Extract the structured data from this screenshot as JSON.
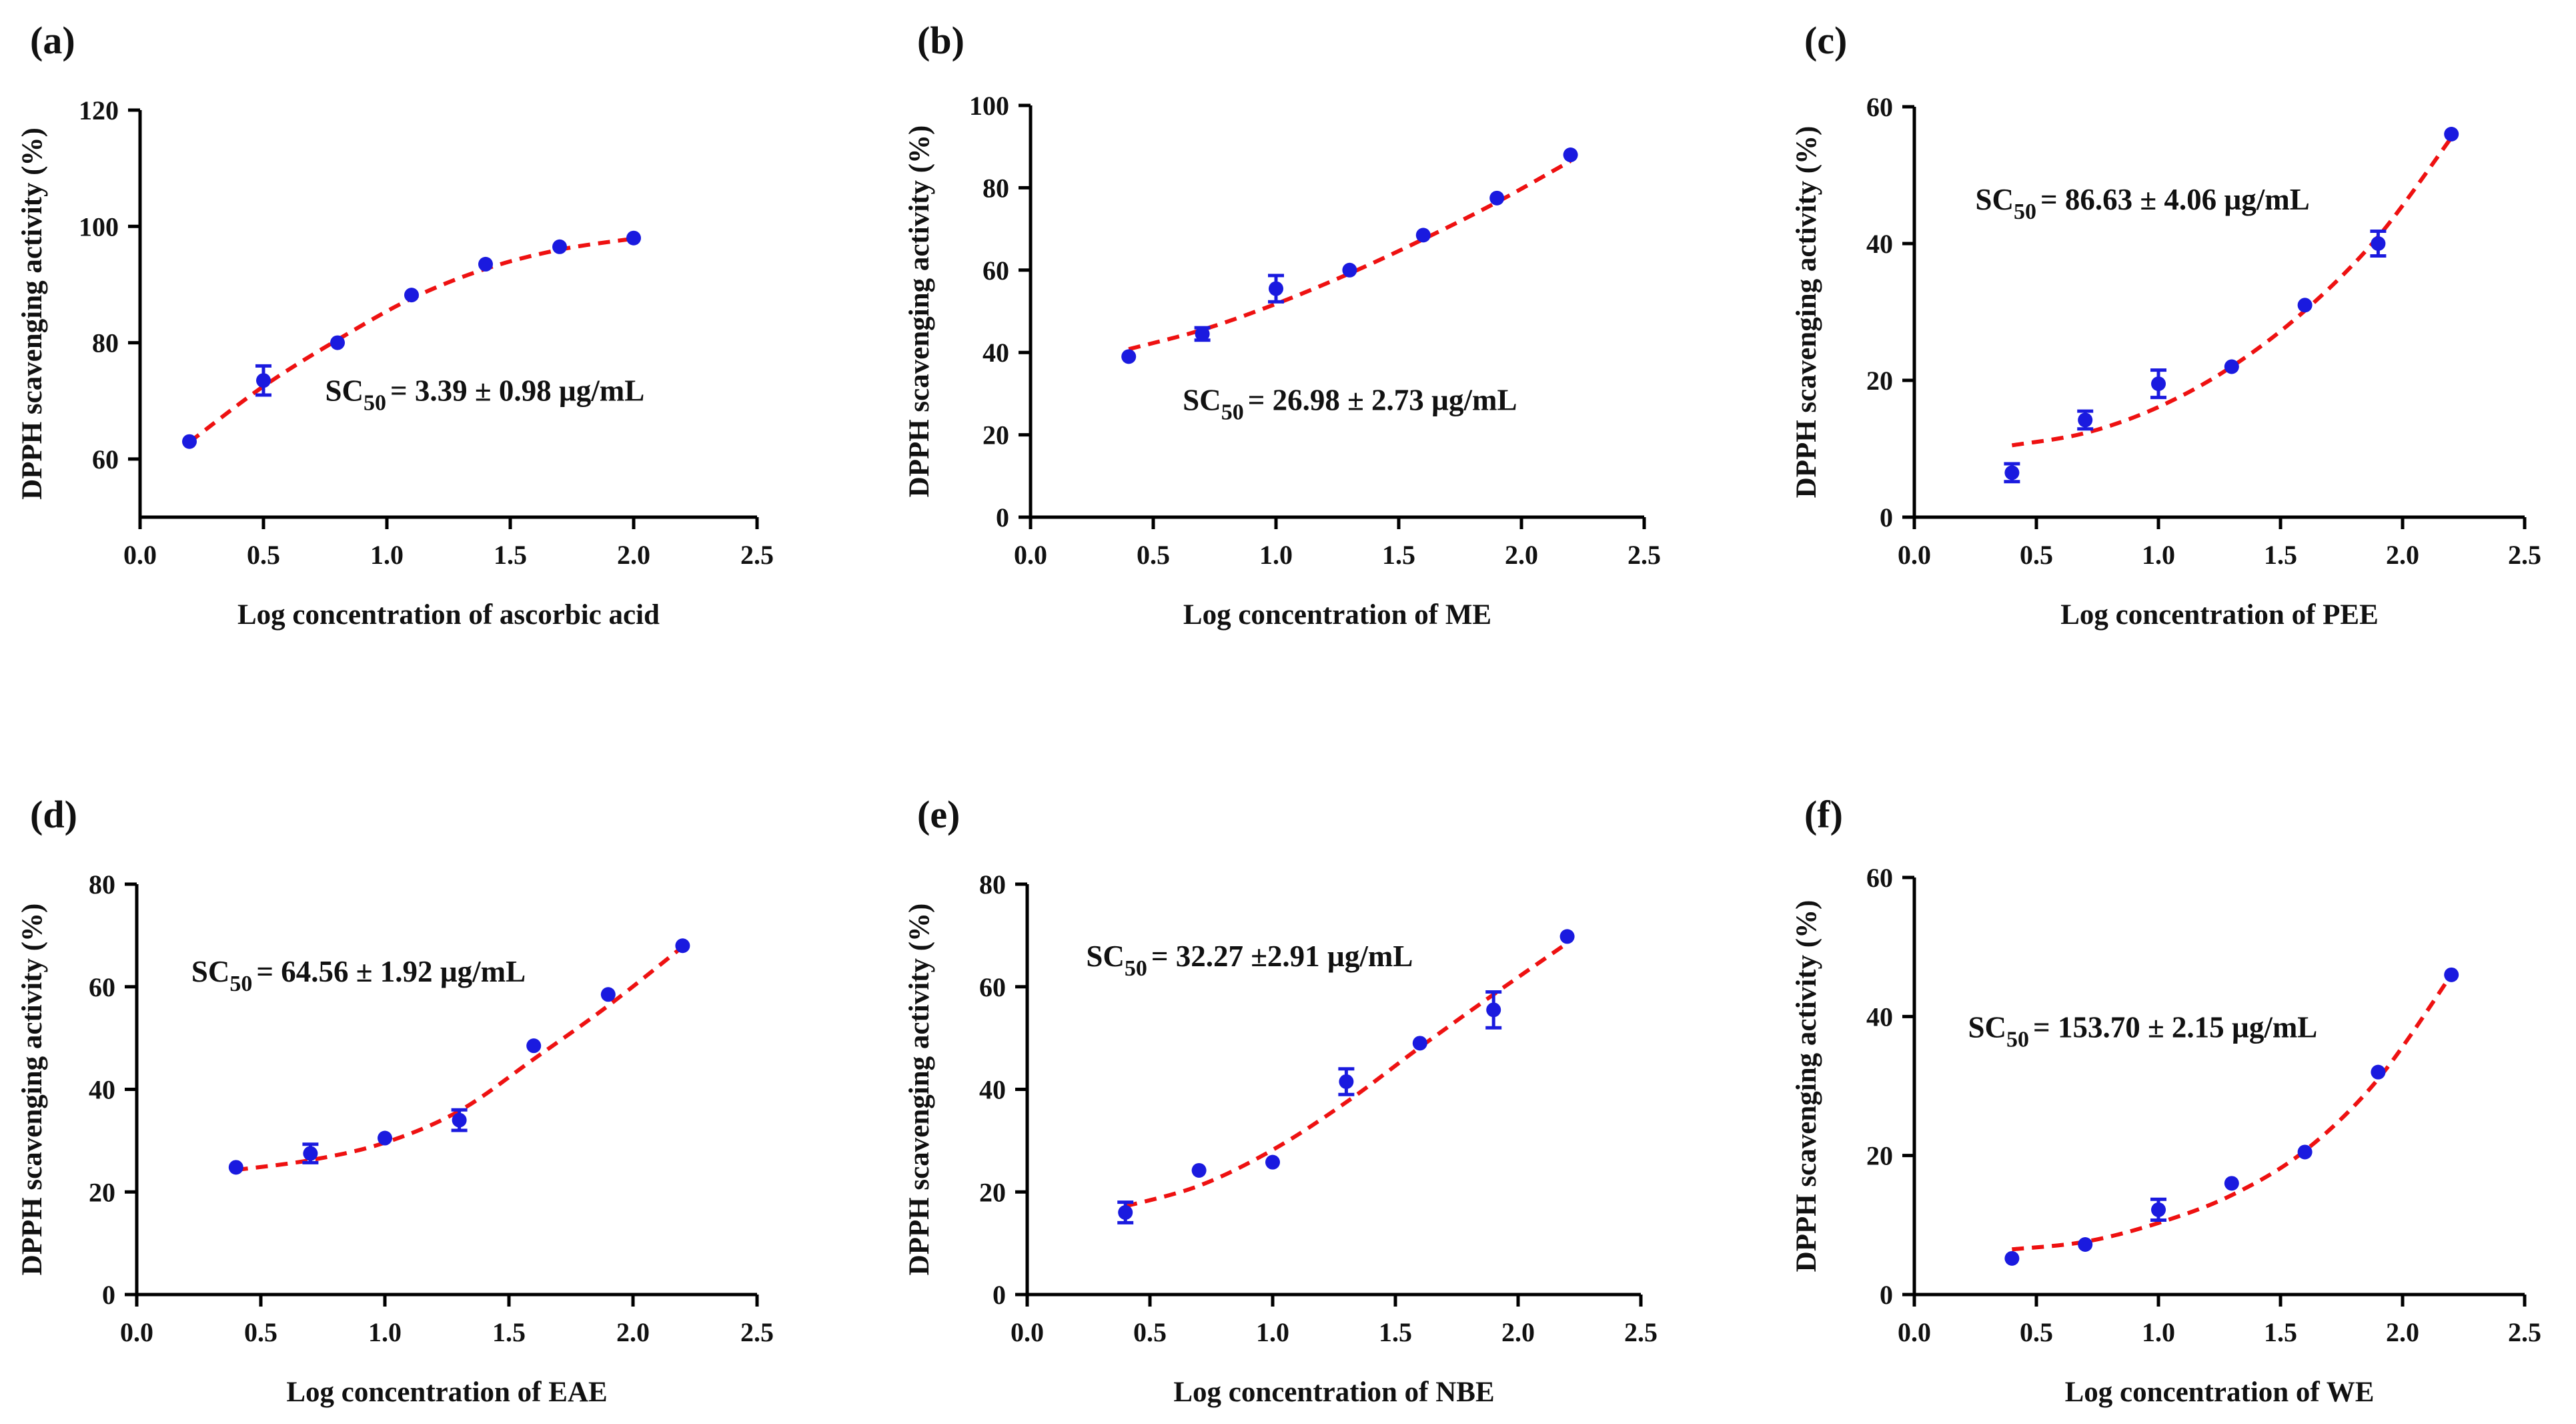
{
  "colors": {
    "points": "#1a1adf",
    "fit_line": "#ee1111",
    "axis": "#000000",
    "text": "#111111"
  },
  "chart_data": [
    {
      "type": "scatter",
      "panel": "(a)",
      "title": "",
      "xlabel": "Log concentration of ascorbic acid",
      "ylabel": "DPPH scavenging activity (%)",
      "xlim": [
        0,
        2.5
      ],
      "ylim": [
        50,
        120
      ],
      "xticks": [
        0,
        0.5,
        1,
        1.5,
        2,
        2.5
      ],
      "xtick_labels": [
        "0.0",
        "0.5",
        "1.0",
        "1.5",
        "2.0",
        "2.5"
      ],
      "yticks": [
        60,
        80,
        100,
        120
      ],
      "ytick_labels": [
        "60",
        "80",
        "100",
        "120"
      ],
      "x": [
        0.2,
        0.5,
        0.8,
        1.1,
        1.4,
        1.7,
        2.0
      ],
      "y": [
        63,
        73.5,
        80,
        88.2,
        93.5,
        96.5,
        98
      ],
      "error": [
        0,
        2.5,
        0,
        0,
        0,
        0,
        0
      ],
      "fit": [
        [
          0.2,
          62.9
        ],
        [
          0.5,
          72.5
        ],
        [
          0.8,
          80.5
        ],
        [
          1.1,
          87.6
        ],
        [
          1.4,
          92.7
        ],
        [
          1.7,
          96.0
        ],
        [
          2.0,
          97.9
        ]
      ],
      "annotation": {
        "prefix": "SC",
        "sub": "50",
        "text": "= 3.39 ± 0.98 µg/mL",
        "x": 0.75,
        "y": 70
      }
    },
    {
      "type": "scatter",
      "panel": "(b)",
      "title": "",
      "xlabel": "Log concentration of ME",
      "ylabel": "DPPH scavenging activity (%)",
      "xlim": [
        0,
        2.5
      ],
      "ylim": [
        0,
        100
      ],
      "xticks": [
        0,
        0.5,
        1,
        1.5,
        2,
        2.5
      ],
      "xtick_labels": [
        "0.0",
        "0.5",
        "1.0",
        "1.5",
        "2.0",
        "2.5"
      ],
      "yticks": [
        0,
        20,
        40,
        60,
        80,
        100
      ],
      "ytick_labels": [
        "0",
        "20",
        "40",
        "60",
        "80",
        "100"
      ],
      "x": [
        0.4,
        0.7,
        1.0,
        1.3,
        1.6,
        1.9,
        2.2
      ],
      "y": [
        39,
        44.5,
        55.5,
        60,
        68.5,
        77.5,
        88
      ],
      "error": [
        0,
        1.5,
        3.2,
        0,
        0,
        0,
        0
      ],
      "fit": [
        [
          0.4,
          40.8
        ],
        [
          0.7,
          45.5
        ],
        [
          1.0,
          51.8
        ],
        [
          1.3,
          59.2
        ],
        [
          1.6,
          67.5
        ],
        [
          1.9,
          76.5
        ],
        [
          2.2,
          86.5
        ]
      ],
      "annotation": {
        "prefix": "SC",
        "sub": "50",
        "text": "= 26.98 ± 2.73 µg/mL",
        "x": 0.62,
        "y": 26
      }
    },
    {
      "type": "scatter",
      "panel": "(c)",
      "title": "",
      "xlabel": "Log concentration of PEE",
      "ylabel": "DPPH scavenging activity (%)",
      "xlim": [
        0,
        2.5
      ],
      "ylim": [
        0,
        60
      ],
      "xticks": [
        0,
        0.5,
        1,
        1.5,
        2,
        2.5
      ],
      "xtick_labels": [
        "0.0",
        "0.5",
        "1.0",
        "1.5",
        "2.0",
        "2.5"
      ],
      "yticks": [
        0,
        20,
        40,
        60
      ],
      "ytick_labels": [
        "0",
        "20",
        "40",
        "60"
      ],
      "x": [
        0.4,
        0.7,
        1.0,
        1.3,
        1.6,
        1.9,
        2.2
      ],
      "y": [
        6.5,
        14.2,
        19.5,
        22,
        31,
        40,
        56
      ],
      "error": [
        1.3,
        1.3,
        2.0,
        0,
        0,
        1.8,
        0
      ],
      "fit": [
        [
          0.4,
          10.5
        ],
        [
          0.7,
          12.3
        ],
        [
          1.0,
          16.1
        ],
        [
          1.3,
          22.0
        ],
        [
          1.6,
          30.2
        ],
        [
          1.9,
          41.0
        ],
        [
          2.2,
          55.5
        ]
      ],
      "annotation": {
        "prefix": "SC",
        "sub": "50",
        "text": "= 86.63 ± 4.06 µg/mL",
        "x": 0.25,
        "y": 45
      }
    },
    {
      "type": "scatter",
      "panel": "(d)",
      "title": "",
      "xlabel": "Log concentration of EAE",
      "ylabel": "DPPH scavenging activity (%)",
      "xlim": [
        0,
        2.5
      ],
      "ylim": [
        0,
        80
      ],
      "xticks": [
        0,
        0.5,
        1,
        1.5,
        2,
        2.5
      ],
      "xtick_labels": [
        "0.0",
        "0.5",
        "1.0",
        "1.5",
        "2.0",
        "2.5"
      ],
      "yticks": [
        0,
        20,
        40,
        60,
        80
      ],
      "ytick_labels": [
        "0",
        "20",
        "40",
        "60",
        "80"
      ],
      "x": [
        0.4,
        0.7,
        1.0,
        1.3,
        1.6,
        1.9,
        2.2
      ],
      "y": [
        24.8,
        27.5,
        30.5,
        34,
        48.5,
        58.5,
        68
      ],
      "error": [
        0,
        1.8,
        0,
        2.0,
        0,
        0,
        0
      ],
      "fit": [
        [
          0.4,
          24.3
        ],
        [
          0.7,
          26.2
        ],
        [
          1.0,
          29.6
        ],
        [
          1.3,
          35.8
        ],
        [
          1.6,
          45.9
        ],
        [
          1.9,
          56.3
        ],
        [
          2.2,
          67.8
        ]
      ],
      "annotation": {
        "prefix": "SC",
        "sub": "50",
        "text": "= 64.56 ± 1.92 µg/mL",
        "x": 0.22,
        "y": 61
      }
    },
    {
      "type": "scatter",
      "panel": "(e)",
      "title": "",
      "xlabel": "Log concentration of NBE",
      "ylabel": "DPPH scavenging activity (%)",
      "xlim": [
        0,
        2.5
      ],
      "ylim": [
        0,
        80
      ],
      "xticks": [
        0,
        0.5,
        1,
        1.5,
        2,
        2.5
      ],
      "xtick_labels": [
        "0.0",
        "0.5",
        "1.0",
        "1.5",
        "2.0",
        "2.5"
      ],
      "yticks": [
        0,
        20,
        40,
        60,
        80
      ],
      "ytick_labels": [
        "0",
        "20",
        "40",
        "60",
        "80"
      ],
      "x": [
        0.4,
        0.7,
        1.0,
        1.3,
        1.6,
        1.9,
        2.2
      ],
      "y": [
        16,
        24.2,
        25.8,
        41.5,
        49,
        55.5,
        69.8
      ],
      "error": [
        2.0,
        0,
        0,
        2.5,
        0,
        3.5,
        0
      ],
      "fit": [
        [
          0.4,
          17.2
        ],
        [
          0.7,
          21.2
        ],
        [
          1.0,
          28.2
        ],
        [
          1.3,
          37.5
        ],
        [
          1.6,
          48.2
        ],
        [
          1.9,
          58.5
        ],
        [
          2.2,
          68.5
        ]
      ],
      "annotation": {
        "prefix": "SC",
        "sub": "50",
        "text": "= 32.27 ±2.91 µg/mL",
        "x": 0.24,
        "y": 64
      }
    },
    {
      "type": "scatter",
      "panel": "(f)",
      "title": "",
      "xlabel": "Log concentration of WE",
      "ylabel": "DPPH scavenging activity (%)",
      "xlim": [
        0,
        2.5
      ],
      "ylim": [
        0,
        60
      ],
      "xticks": [
        0,
        0.5,
        1,
        1.5,
        2,
        2.5
      ],
      "xtick_labels": [
        "0.0",
        "0.5",
        "1.0",
        "1.5",
        "2.0",
        "2.5"
      ],
      "yticks": [
        0,
        20,
        40,
        60
      ],
      "ytick_labels": [
        "0",
        "20",
        "40",
        "60"
      ],
      "x": [
        0.4,
        0.7,
        1.0,
        1.3,
        1.6,
        1.9,
        2.2
      ],
      "y": [
        5.2,
        7.2,
        12.2,
        16,
        20.5,
        32,
        46
      ],
      "error": [
        0,
        0,
        1.5,
        0,
        0,
        0,
        0
      ],
      "fit": [
        [
          0.4,
          6.5
        ],
        [
          0.7,
          7.6
        ],
        [
          1.0,
          10.3
        ],
        [
          1.3,
          14.3
        ],
        [
          1.6,
          20.7
        ],
        [
          1.9,
          31.0
        ],
        [
          2.2,
          46.0
        ]
      ],
      "annotation": {
        "prefix": "SC",
        "sub": "50",
        "text": "= 153.70 ± 2.15 µg/mL",
        "x": 0.22,
        "y": 37
      }
    }
  ]
}
